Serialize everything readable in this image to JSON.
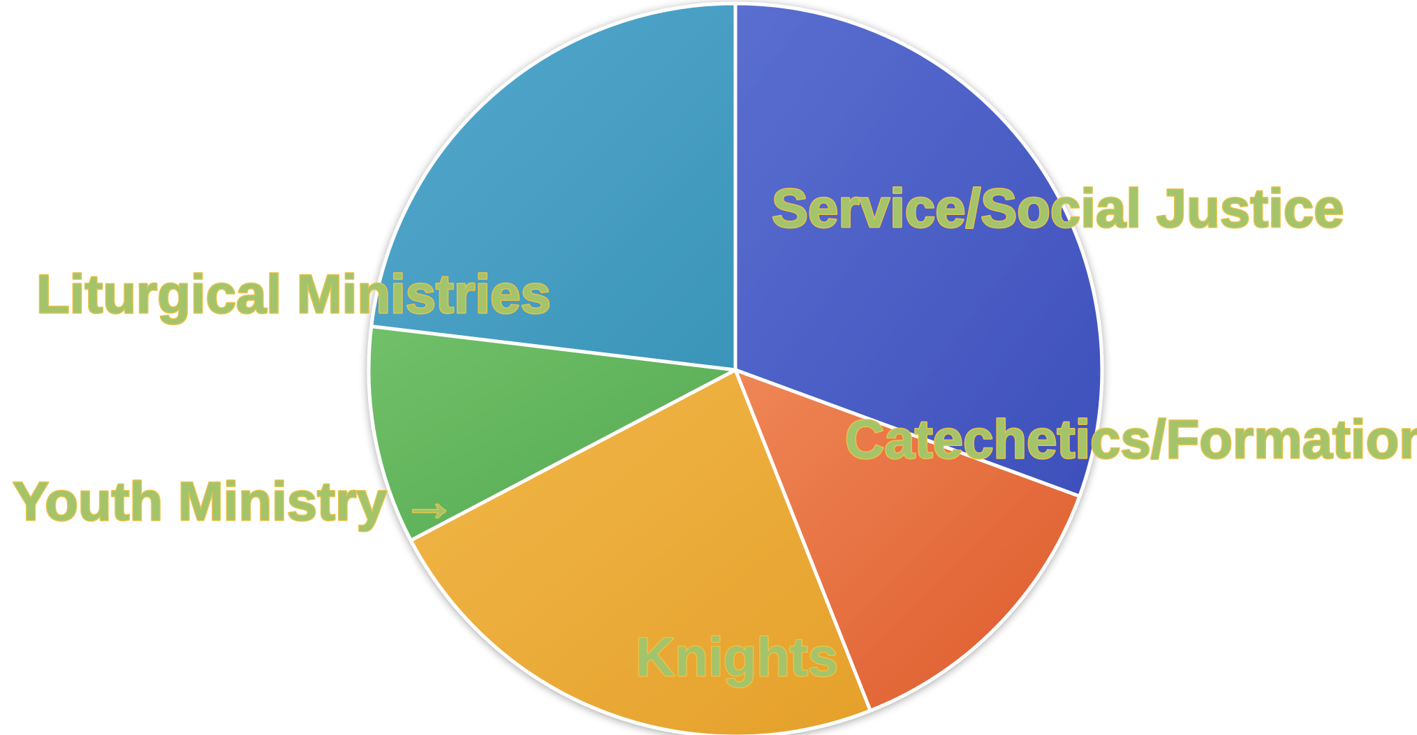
{
  "chart_data": {
    "type": "pie",
    "title": "",
    "slices": [
      {
        "label": "Service/Social Justice",
        "value": 30.6,
        "color": "#3d4fbb",
        "color_light": "#5a6fd0"
      },
      {
        "label": "Catechetics/Formation",
        "value": 13.4,
        "color": "#dd5a2c",
        "color_light": "#ef8656"
      },
      {
        "label": "Knights",
        "value": 23.3,
        "color": "#e5a02a",
        "color_light": "#f1b84a"
      },
      {
        "label": "Youth Ministry →",
        "value": 9.6,
        "color": "#53a94f",
        "color_light": "#71c06a"
      },
      {
        "label": "Liturgical Ministries",
        "value": 23.1,
        "color": "#3a95b9",
        "color_light": "#55a9cd"
      }
    ],
    "start_angle_deg": 90,
    "direction": "clockwise",
    "legend": "none",
    "label_color": "#a3c46a",
    "label_outline_color": "#e9c24a",
    "slice_border_color": "#ffffff"
  }
}
